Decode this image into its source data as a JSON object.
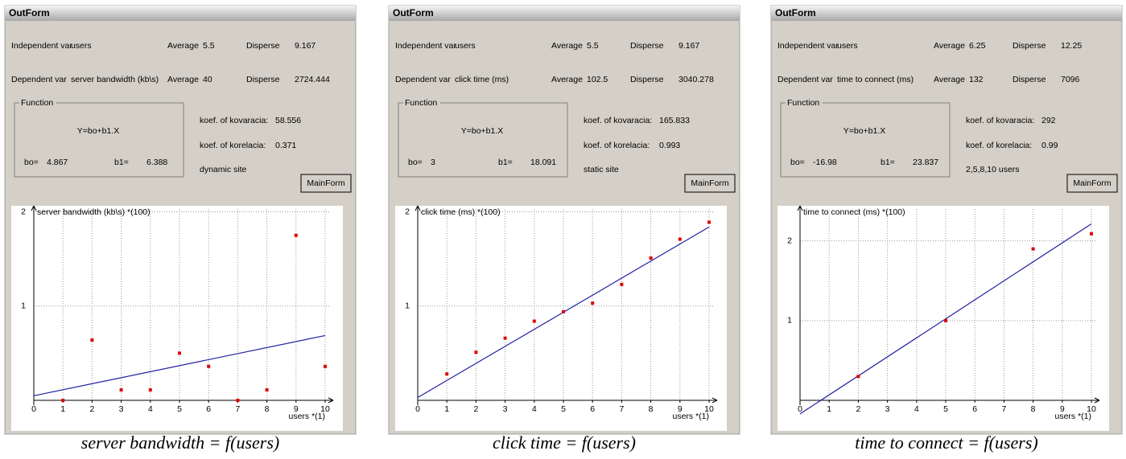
{
  "panels": [
    {
      "window_title": "OutForm",
      "independent_label": "Independent var",
      "independent": "users",
      "avg_label_1": "Average",
      "avg_1": 5.5,
      "disp_label_1": "Disperse",
      "disp_1": 9.167,
      "dependent_label": "Dependent var",
      "dependent": "server bandwidth (kb\\s)",
      "avg_label_2": "Average",
      "avg_2": 40,
      "disp_label_2": "Disperse",
      "disp_2": 2724.444,
      "function_label": "Function",
      "formula": "Y=bo+b1.X",
      "bo_label": "bo=",
      "bo": 4.867,
      "b1_label": "b1=",
      "b1": 6.388,
      "kov_label": "koef. of kovaracia:",
      "kov": 58.556,
      "kor_label": "koef. of korelacia:",
      "kor": 0.371,
      "note": "dynamic site",
      "button": "MainForm",
      "caption": "server bandwidth = f(users)"
    },
    {
      "window_title": "OutForm",
      "independent_label": "Independent var",
      "independent": "users",
      "avg_label_1": "Average",
      "avg_1": 5.5,
      "disp_label_1": "Disperse",
      "disp_1": 9.167,
      "dependent_label": "Dependent var",
      "dependent": "click time (ms)",
      "avg_label_2": "Average",
      "avg_2": 102.5,
      "disp_label_2": "Disperse",
      "disp_2": 3040.278,
      "function_label": "Function",
      "formula": "Y=bo+b1.X",
      "bo_label": "bo=",
      "bo": 3,
      "b1_label": "b1=",
      "b1": 18.091,
      "kov_label": "koef. of kovaracia:",
      "kov": 165.833,
      "kor_label": "koef. of korelacia:",
      "kor": 0.993,
      "note": "static site",
      "button": "MainForm",
      "caption": "click time = f(users)"
    },
    {
      "window_title": "OutForm",
      "independent_label": "Independent var",
      "independent": "users",
      "avg_label_1": "Average",
      "avg_1": 6.25,
      "disp_label_1": "Disperse",
      "disp_1": 12.25,
      "dependent_label": "Dependent var",
      "dependent": "time to connect (ms)",
      "avg_label_2": "Average",
      "avg_2": 132,
      "disp_label_2": "Disperse",
      "disp_2": 7096,
      "function_label": "Function",
      "formula": "Y=bo+b1.X",
      "bo_label": "bo=",
      "bo": -16.98,
      "b1_label": "b1=",
      "b1": 23.837,
      "kov_label": "koef. of kovaracia:",
      "kov": 292,
      "kor_label": "koef. of korelacia:",
      "kor": 0.99,
      "note": "2,5,8,10 users",
      "button": "MainForm",
      "caption": "time to connect = f(users)"
    }
  ],
  "chart_data": [
    {
      "type": "scatter",
      "y_label": "server bandwidth (kb\\s) *(100)",
      "x_label": "users *(1)",
      "yscale": 100,
      "x": [
        1,
        2,
        3,
        4,
        5,
        6,
        7,
        8,
        9,
        10
      ],
      "values": [
        0,
        0.64,
        0.11,
        0.11,
        0.5,
        0.36,
        0,
        0.11,
        1.75,
        0.36
      ],
      "xlim": [
        0,
        10
      ],
      "ylim": [
        0,
        2.03
      ],
      "xticks": [
        0,
        1,
        2,
        3,
        4,
        5,
        6,
        7,
        8,
        9,
        10
      ],
      "yticks": [
        1,
        2
      ],
      "color": "#e00000",
      "line_color": "#2020a0",
      "grid": true
    },
    {
      "type": "scatter",
      "y_label": "click time (ms) *(100)",
      "x_label": "users *(1)",
      "yscale": 100,
      "x": [
        1,
        2,
        3,
        4,
        5,
        6,
        7,
        8,
        9,
        10
      ],
      "values": [
        0.28,
        0.51,
        0.66,
        0.84,
        0.94,
        1.03,
        1.23,
        1.51,
        1.71,
        1.89
      ],
      "xlim": [
        0,
        10
      ],
      "ylim": [
        0,
        2.03
      ],
      "xticks": [
        0,
        1,
        2,
        3,
        4,
        5,
        6,
        7,
        8,
        9,
        10
      ],
      "yticks": [
        1,
        2
      ],
      "color": "#e00000",
      "line_color": "#2020a0",
      "grid": true
    },
    {
      "type": "scatter",
      "y_label": "time to connect (ms) *(100)",
      "x_label": "users *(1)",
      "yscale": 100,
      "x": [
        2,
        5,
        8,
        10
      ],
      "values": [
        0.3,
        1.0,
        1.9,
        2.09
      ],
      "xlim": [
        0,
        10
      ],
      "ylim": [
        0,
        2.4
      ],
      "xticks": [
        0,
        1,
        2,
        3,
        4,
        5,
        6,
        7,
        8,
        9,
        10
      ],
      "yticks": [
        1,
        2
      ],
      "color": "#e00000",
      "line_color": "#2020a0",
      "grid": true
    }
  ]
}
